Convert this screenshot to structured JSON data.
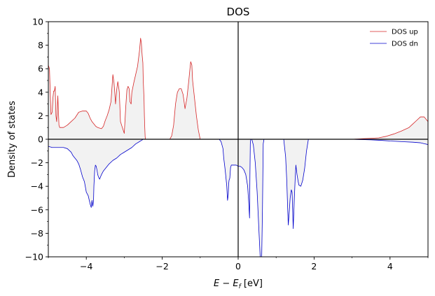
{
  "chart_data": {
    "type": "area",
    "title": "DOS",
    "xlabel_main": "E − E",
    "xlabel_sub": "f",
    "xlabel_unit": " [eV]",
    "ylabel": "Density of states",
    "xlim": [
      -5,
      5
    ],
    "ylim": [
      -10,
      10
    ],
    "x_ticks": [
      -4,
      -2,
      0,
      2,
      4
    ],
    "x_tick_labels": [
      "−4",
      "−2",
      "0",
      "2",
      "4"
    ],
    "y_ticks": [
      -10,
      -8,
      -6,
      -4,
      -2,
      0,
      2,
      4,
      6,
      8,
      10
    ],
    "y_tick_labels": [
      "−10",
      "−8",
      "−6",
      "−4",
      "−2",
      "0",
      "2",
      "4",
      "6",
      "8",
      "10"
    ],
    "grid": false,
    "legend_position": "top-right",
    "fill_color": "#f2f2f2",
    "series": [
      {
        "name": "DOS up",
        "color": "#d62728",
        "x": [
          -5.0,
          -4.97,
          -4.95,
          -4.93,
          -4.9,
          -4.88,
          -4.86,
          -4.84,
          -4.82,
          -4.8,
          -4.78,
          -4.75,
          -4.72,
          -4.7,
          -4.67,
          -4.64,
          -4.6,
          -4.5,
          -4.4,
          -4.3,
          -4.2,
          -4.1,
          -4.0,
          -3.95,
          -3.9,
          -3.85,
          -3.8,
          -3.75,
          -3.7,
          -3.6,
          -3.55,
          -3.5,
          -3.45,
          -3.4,
          -3.35,
          -3.3,
          -3.27,
          -3.25,
          -3.23,
          -3.2,
          -3.17,
          -3.15,
          -3.13,
          -3.1,
          -3.05,
          -3.0,
          -2.96,
          -2.93,
          -2.9,
          -2.87,
          -2.85,
          -2.82,
          -2.8,
          -2.75,
          -2.7,
          -2.65,
          -2.6,
          -2.57,
          -2.55,
          -2.53,
          -2.51,
          -2.5,
          -2.48,
          -2.47,
          -2.46,
          -2.45,
          -2.44,
          -2.2,
          -1.8,
          -1.75,
          -1.7,
          -1.65,
          -1.6,
          -1.55,
          -1.5,
          -1.45,
          -1.4,
          -1.35,
          -1.3,
          -1.27,
          -1.25,
          -1.22,
          -1.2,
          -1.15,
          -1.1,
          -1.05,
          -1.0,
          -0.5,
          0.0,
          1.0,
          2.0,
          3.0,
          3.3,
          3.5,
          3.7,
          3.9,
          4.1,
          4.3,
          4.5,
          4.6,
          4.7,
          4.8,
          4.9,
          4.95,
          5.0
        ],
        "y": [
          6.3,
          6.0,
          4.0,
          2.1,
          2.3,
          3.5,
          4.1,
          4.1,
          4.5,
          2.0,
          1.5,
          3.7,
          1.2,
          1.0,
          1.0,
          1.0,
          1.0,
          1.2,
          1.5,
          1.8,
          2.3,
          2.4,
          2.4,
          2.2,
          1.8,
          1.5,
          1.3,
          1.1,
          1.0,
          0.9,
          1.1,
          1.6,
          2.0,
          2.5,
          3.2,
          5.5,
          4.8,
          4.0,
          3.0,
          4.2,
          4.9,
          4.5,
          4.0,
          1.5,
          1.0,
          0.5,
          2.8,
          4.2,
          4.5,
          4.3,
          3.2,
          3.0,
          4.0,
          4.8,
          5.5,
          6.2,
          7.5,
          8.6,
          8.2,
          7.2,
          6.5,
          5.0,
          3.5,
          2.0,
          1.0,
          0.2,
          0.0,
          0.0,
          0.0,
          0.3,
          1.2,
          3.0,
          4.0,
          4.3,
          4.3,
          3.8,
          2.6,
          3.5,
          5.0,
          6.0,
          6.6,
          6.3,
          5.0,
          3.5,
          2.0,
          0.8,
          0.0,
          0.0,
          0.0,
          0.0,
          0.0,
          0.0,
          0.05,
          0.08,
          0.12,
          0.25,
          0.45,
          0.7,
          1.0,
          1.3,
          1.6,
          1.9,
          1.9,
          1.7,
          1.5
        ]
      },
      {
        "name": "DOS dn",
        "color": "#0000cc",
        "x": [
          -5.0,
          -4.9,
          -4.8,
          -4.6,
          -4.5,
          -4.4,
          -4.35,
          -4.3,
          -4.25,
          -4.2,
          -4.15,
          -4.1,
          -4.05,
          -4.0,
          -3.95,
          -3.9,
          -3.87,
          -3.85,
          -3.83,
          -3.81,
          -3.8,
          -3.78,
          -3.76,
          -3.74,
          -3.72,
          -3.7,
          -3.68,
          -3.65,
          -3.6,
          -3.55,
          -3.5,
          -3.45,
          -3.4,
          -3.3,
          -3.2,
          -3.1,
          -3.0,
          -2.9,
          -2.8,
          -2.7,
          -2.6,
          -2.55,
          -2.5,
          -2.45,
          -0.5,
          -0.45,
          -0.4,
          -0.38,
          -0.35,
          -0.33,
          -0.3,
          -0.28,
          -0.26,
          -0.25,
          -0.24,
          -0.22,
          -0.2,
          -0.18,
          -0.15,
          -0.1,
          -0.05,
          0.0,
          0.05,
          0.1,
          0.15,
          0.2,
          0.25,
          0.28,
          0.3,
          0.31,
          0.32,
          0.33,
          0.34,
          0.36,
          0.4,
          0.45,
          0.5,
          0.55,
          0.58,
          0.6,
          0.62,
          0.64,
          0.66,
          0.68,
          0.7,
          1.2,
          1.25,
          1.28,
          1.3,
          1.32,
          1.35,
          1.37,
          1.4,
          1.42,
          1.45,
          1.48,
          1.5,
          1.52,
          1.55,
          1.58,
          1.6,
          1.65,
          1.7,
          1.75,
          1.8,
          1.85,
          2.0,
          3.0,
          3.5,
          3.8,
          4.0,
          4.3,
          4.6,
          4.8,
          4.9,
          5.0
        ],
        "y": [
          -0.6,
          -0.7,
          -0.7,
          -0.7,
          -0.8,
          -1.1,
          -1.4,
          -1.6,
          -1.8,
          -2.1,
          -2.6,
          -3.2,
          -3.6,
          -4.5,
          -4.8,
          -5.5,
          -5.8,
          -5.2,
          -5.7,
          -5.3,
          -4.0,
          -2.7,
          -2.2,
          -2.3,
          -2.6,
          -3.0,
          -3.2,
          -3.4,
          -3.0,
          -2.7,
          -2.5,
          -2.3,
          -2.1,
          -1.8,
          -1.6,
          -1.3,
          -1.1,
          -0.9,
          -0.7,
          -0.4,
          -0.2,
          -0.1,
          0.0,
          0.0,
          0.0,
          -0.2,
          -0.8,
          -1.6,
          -2.4,
          -3.0,
          -4.0,
          -5.2,
          -4.7,
          -3.8,
          -3.5,
          -3.3,
          -2.4,
          -2.2,
          -2.2,
          -2.2,
          -2.2,
          -2.3,
          -2.3,
          -2.4,
          -2.6,
          -3.0,
          -4.0,
          -5.5,
          -6.7,
          -3.0,
          -0.4,
          0.0,
          0.0,
          0.0,
          -0.5,
          -2.0,
          -4.5,
          -8.0,
          -10.0,
          -10.0,
          -10.0,
          -6.0,
          -0.4,
          0.0,
          0.0,
          0.0,
          -1.5,
          -3.5,
          -5.5,
          -7.3,
          -6.0,
          -5.0,
          -4.3,
          -4.5,
          -7.6,
          -5.0,
          -3.5,
          -2.2,
          -3.0,
          -3.6,
          -3.9,
          -4.0,
          -3.5,
          -2.5,
          -1.0,
          0.0,
          0.0,
          0.0,
          -0.05,
          -0.1,
          -0.15,
          -0.2,
          -0.25,
          -0.3,
          -0.38,
          -0.45
        ]
      }
    ]
  }
}
